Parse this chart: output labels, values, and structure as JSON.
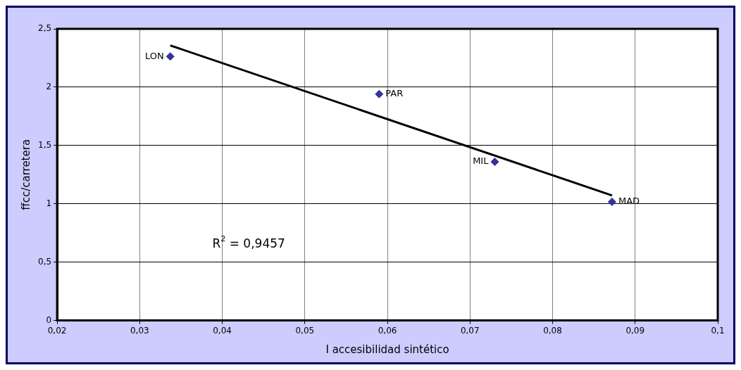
{
  "chart_data": {
    "type": "scatter",
    "xlabel": "I accesibilidad sintético",
    "ylabel": "ffcc/carretera",
    "x": [
      0.0337,
      0.059,
      0.073,
      0.0872
    ],
    "series": [
      {
        "color": "#333399",
        "values": [
          2.263,
          1.941,
          1.36,
          1.017
        ],
        "marker": "diamond"
      },
      {
        "type": "line",
        "color": "#000000",
        "x": [
          0.0337,
          0.0872
        ],
        "values": [
          2.358,
          1.072
        ],
        "marker": "none",
        "line_style": "solid"
      }
    ],
    "annotations": [
      {
        "text": "LON",
        "x": 0.0337,
        "y": 2.263
      },
      {
        "text": "PAR",
        "x": 0.059,
        "y": 1.941
      },
      {
        "text": "MIL",
        "x": 0.073,
        "y": 1.36
      },
      {
        "text": "MAD",
        "x": 0.0872,
        "y": 1.017
      },
      "R$^{2}$ = 0,9457"
    ],
    "xlim": [
      0.02,
      0.1
    ],
    "xticks": [
      {
        "value": 0.02,
        "label": "0,02"
      },
      {
        "value": 0.03,
        "label": "0,03"
      },
      {
        "value": 0.04,
        "label": "0,04"
      },
      {
        "value": 0.05,
        "label": "0,05"
      },
      {
        "value": 0.06,
        "label": "0,06"
      },
      {
        "value": 0.07,
        "label": "0,07"
      },
      {
        "value": 0.08,
        "label": "0,08"
      },
      {
        "value": 0.09,
        "label": "0,09"
      },
      {
        "value": 0.1,
        "label": "0,1"
      }
    ],
    "ylim": [
      0,
      2.5
    ],
    "yticks": [
      0,
      {
        "value": 0.5,
        "label": "0,5"
      },
      1,
      {
        "value": 1.5,
        "label": "1,5"
      },
      2,
      {
        "value": 2.5,
        "label": "2,5"
      }
    ],
    "grid": true,
    "legend": false
  }
}
